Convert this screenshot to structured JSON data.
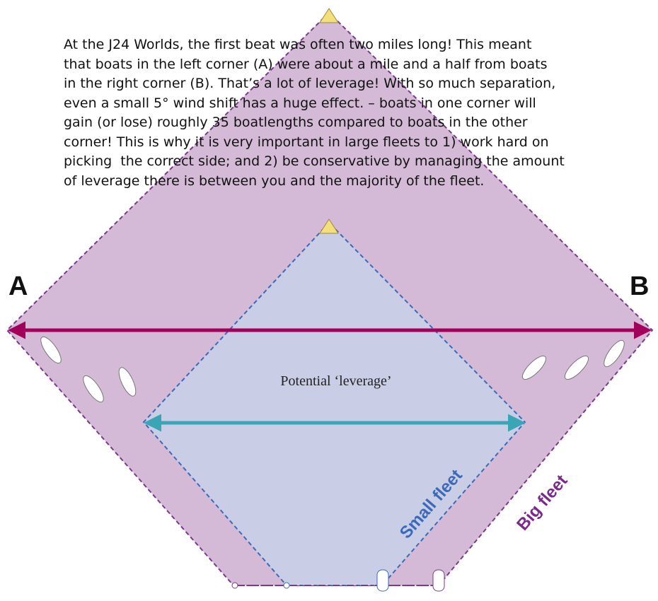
{
  "paragraph": {
    "lines": [
      "At the J24 Worlds, the first beat was often two miles long! This meant",
      "that boats in the left corner (A) were about a mile and a half from boats",
      "in the right corner (B). That’s a lot of leverage! With so much separation,",
      "even a small 5° wind shift has a huge effect. – boats in one corner will",
      "gain (or lose) roughly 35 boatlengths compared to boats in the other",
      "corner! This is why it is very important in large fleets to 1) work hard on",
      "picking  the correct side; and 2) be conservative by managing the amount",
      "of leverage there is between you and the majority of the fleet."
    ]
  },
  "labels": {
    "corner_a": "A",
    "corner_b": "B",
    "leverage": "Potential ‘leverage’",
    "small_fleet": "Small fleet",
    "big_fleet": "Big fleet"
  }
}
